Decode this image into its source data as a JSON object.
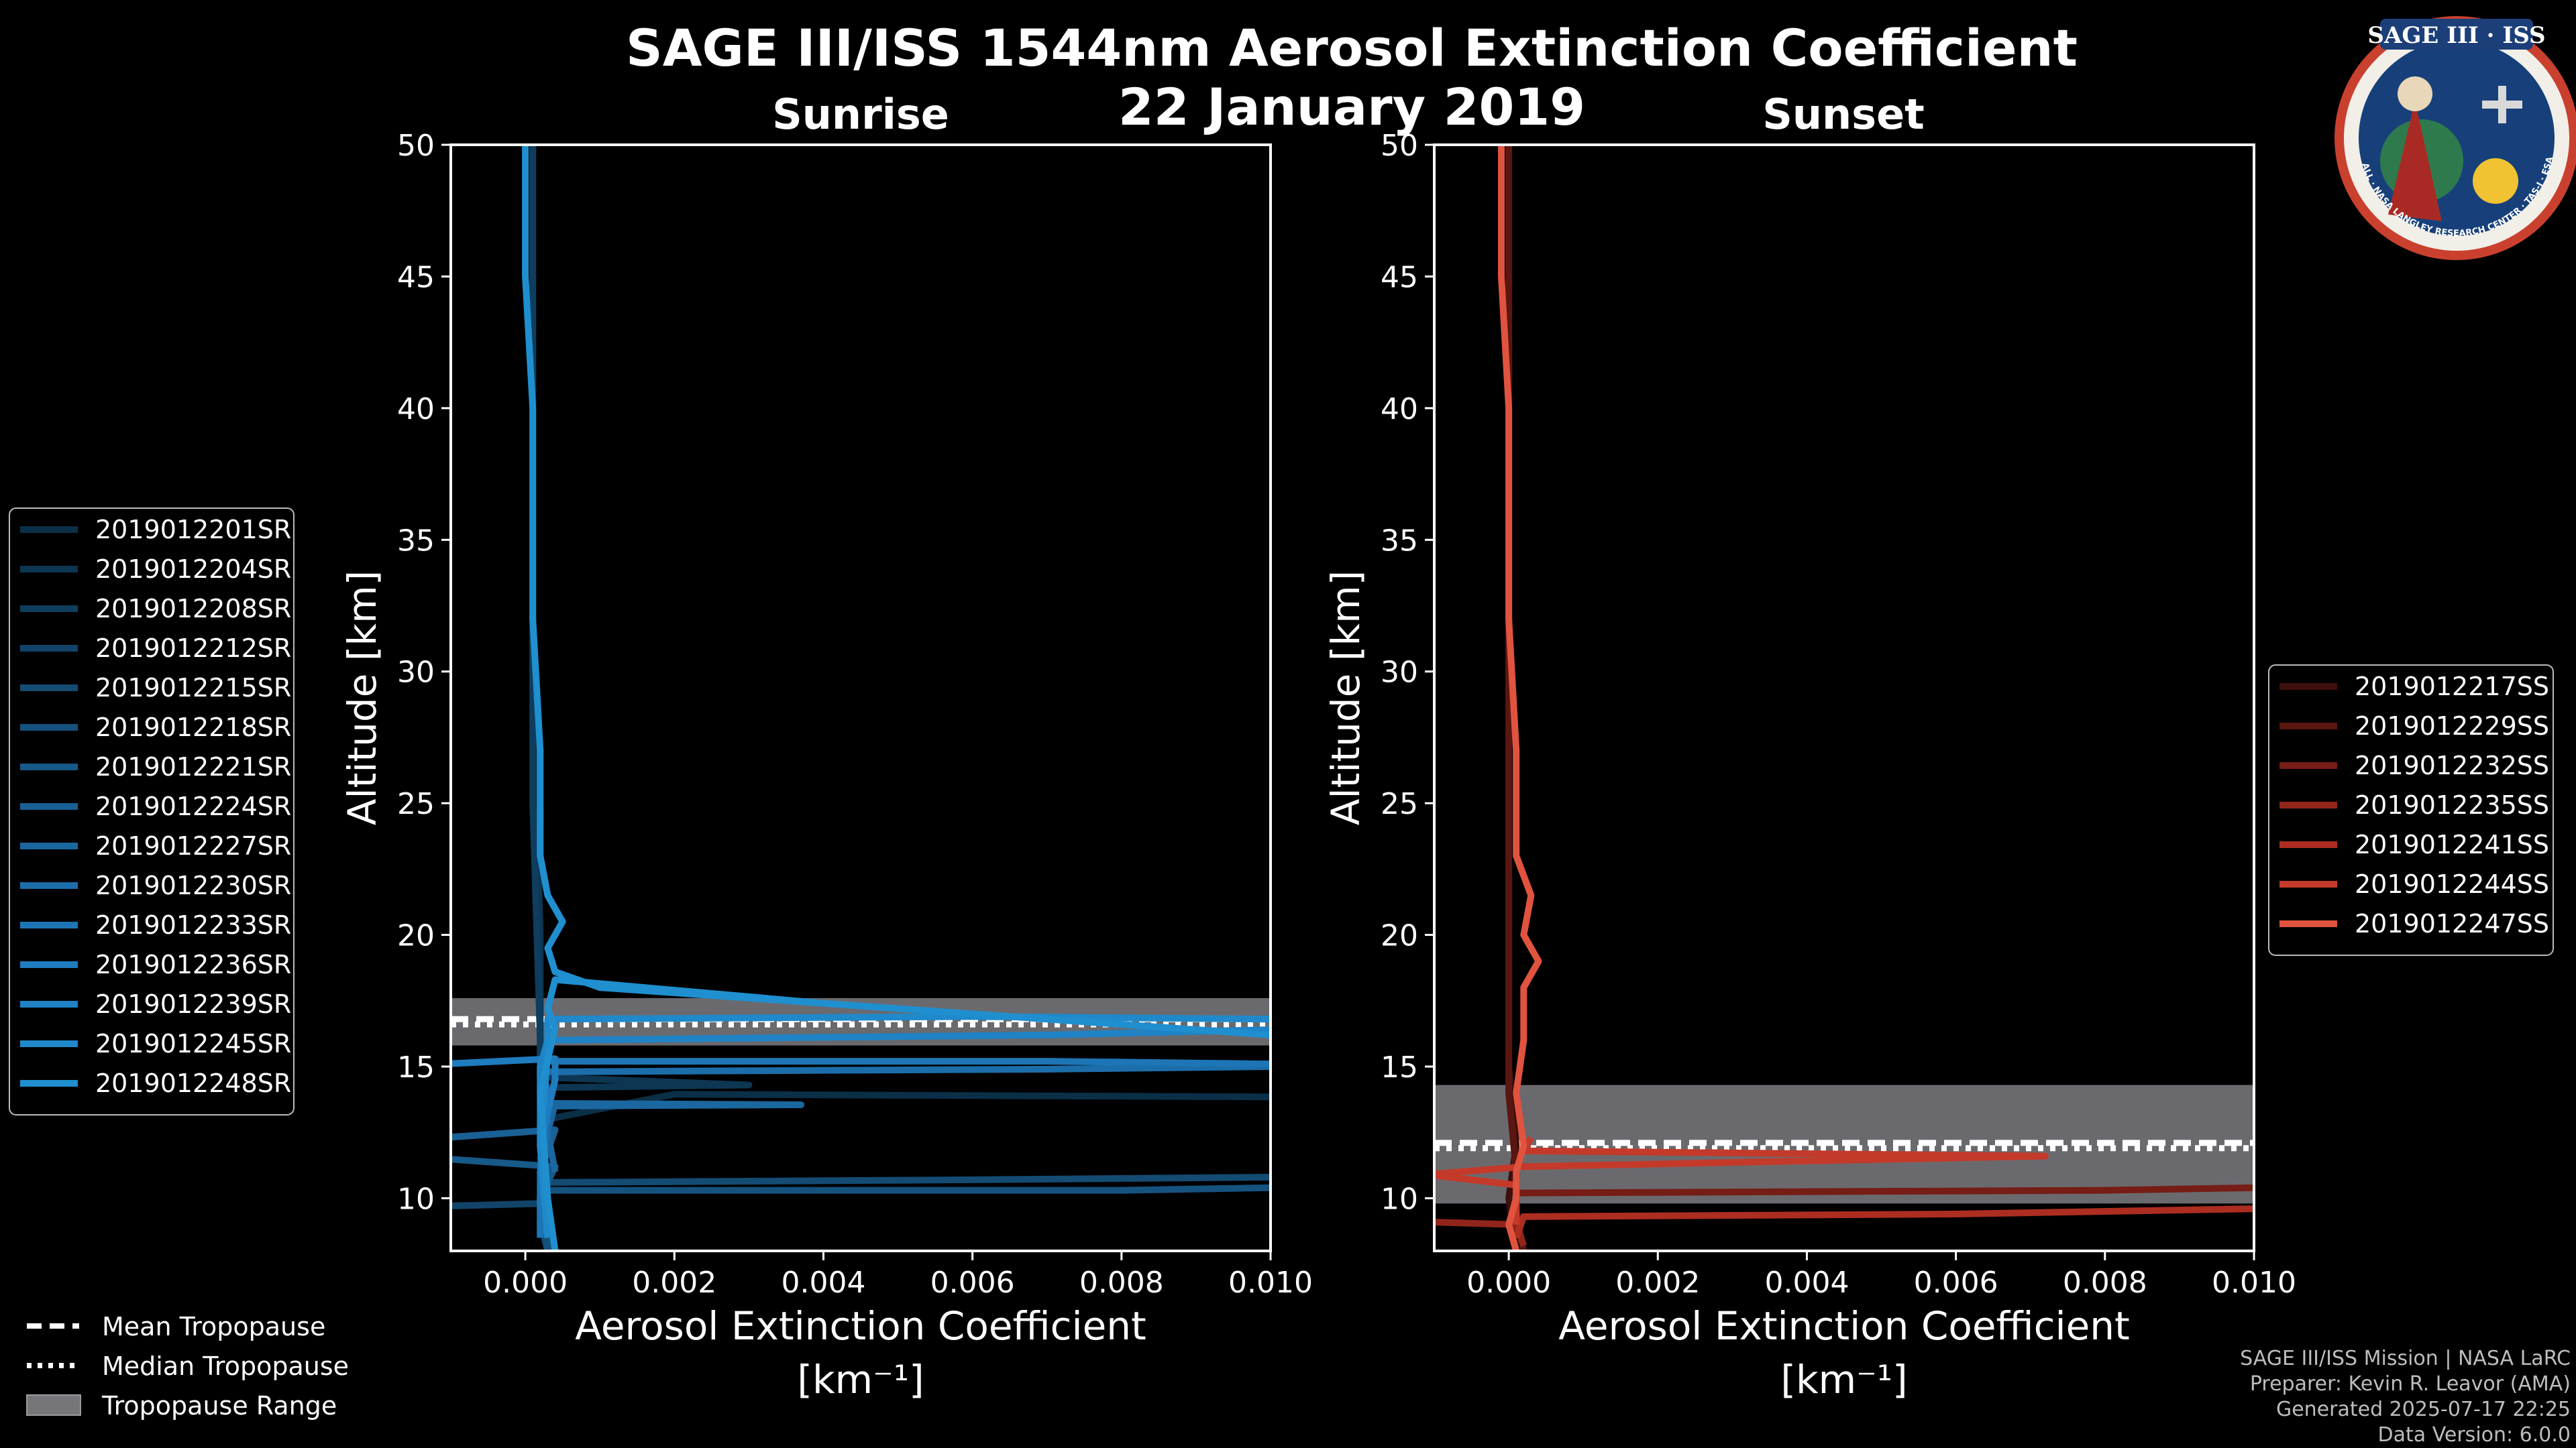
{
  "title": "SAGE III/ISS 1544nm Aerosol Extinction Coefficient",
  "date": "22 January 2019",
  "logo": {
    "text": "SAGE III · ISS",
    "ring_text": "BALL · NASA LANGLEY RESEARCH CENTER · TAS-I · ESA"
  },
  "footer": [
    "SAGE III/ISS Mission | NASA LaRC",
    "Preparer: Kevin R. Leavor (AMA)",
    "Generated 2025-07-17 22:25",
    "Data Version: 6.0.0"
  ],
  "tropopause_legend": [
    {
      "label": "Mean Tropopause",
      "style": "dashed"
    },
    {
      "label": "Median Tropopause",
      "style": "dotted"
    },
    {
      "label": "Tropopause Range",
      "style": "band"
    }
  ],
  "chart_data": [
    {
      "type": "line",
      "title": "Sunrise",
      "xlabel": "Aerosol Extinction Coefficient",
      "xunit": "[km⁻¹]",
      "ylabel": "Altitude [km]",
      "xlim": [
        -0.001,
        0.01
      ],
      "ylim": [
        8,
        50
      ],
      "xticks": [
        "0.000",
        "0.002",
        "0.004",
        "0.006",
        "0.008",
        "0.010"
      ],
      "xtick_values": [
        0,
        0.002,
        0.004,
        0.006,
        0.008,
        0.01
      ],
      "yticks": [
        10,
        15,
        20,
        25,
        30,
        35,
        40,
        45,
        50
      ],
      "tropopause": {
        "mean": 16.8,
        "median": 16.6,
        "range": [
          15.8,
          17.6
        ]
      },
      "color": "#1f8cc8",
      "series": [
        {
          "name": "2019012201SR",
          "color": "#0b2f47",
          "points": [
            [
              0.0003,
              8
            ],
            [
              0.0002,
              9
            ],
            [
              0.0002,
              10
            ],
            [
              0.0003,
              11
            ],
            [
              0.0002,
              12
            ],
            [
              0.0003,
              13
            ],
            [
              0.002,
              13.95
            ],
            [
              0.01,
              13.85
            ]
          ]
        },
        {
          "name": "2019012204SR",
          "color": "#0d3652",
          "points": [
            [
              0.0004,
              8
            ],
            [
              0.0003,
              9
            ],
            [
              0.0002,
              10
            ],
            [
              0.0003,
              11
            ],
            [
              0.0002,
              12
            ],
            [
              0.0002,
              13
            ],
            [
              0.0003,
              14.2
            ],
            [
              0.003,
              14.3
            ],
            [
              0.0002,
              14.6
            ],
            [
              0.0002,
              16
            ],
            [
              0.0002,
              20
            ],
            [
              0.0001,
              30
            ],
            [
              0.0001,
              50
            ]
          ]
        },
        {
          "name": "2019012208SR",
          "color": "#0f3d5d",
          "points": [
            [
              0.0003,
              8
            ],
            [
              0.0002,
              9.5
            ],
            [
              0.0003,
              10.5
            ],
            [
              0.0002,
              11.5
            ],
            [
              0.0003,
              12.5
            ],
            [
              0.0002,
              14
            ],
            [
              0.0002,
              16
            ],
            [
              0.0001,
              25
            ],
            [
              0.0001,
              50
            ]
          ]
        },
        {
          "name": "2019012212SR",
          "color": "#114468",
          "points": [
            [
              0.0004,
              8
            ],
            [
              0.0003,
              9
            ],
            [
              0.0002,
              9.8
            ],
            [
              -0.0011,
              9.7
            ]
          ]
        },
        {
          "name": "2019012215SR",
          "color": "#134b73",
          "points": [
            [
              0.0003,
              8
            ],
            [
              0.0002,
              9.5
            ],
            [
              0.0003,
              10.6
            ],
            [
              0.006,
              10.7
            ],
            [
              0.01,
              10.8
            ]
          ]
        },
        {
          "name": "2019012218SR",
          "color": "#15527e",
          "points": [
            [
              0.0003,
              8
            ],
            [
              0.0003,
              9.5
            ],
            [
              0.0002,
              10.3
            ],
            [
              0.008,
              10.3
            ],
            [
              0.01,
              10.4
            ]
          ]
        },
        {
          "name": "2019012221SR",
          "color": "#175989",
          "points": [
            [
              0.0002,
              8.5
            ],
            [
              0.0002,
              10
            ],
            [
              0.0004,
              11.2
            ],
            [
              -0.0011,
              11.5
            ]
          ]
        },
        {
          "name": "2019012224SR",
          "color": "#196094",
          "points": [
            [
              0.0003,
              9
            ],
            [
              0.0002,
              11
            ],
            [
              0.0004,
              12.6
            ],
            [
              -0.0011,
              12.3
            ]
          ]
        },
        {
          "name": "2019012227SR",
          "color": "#1b679f",
          "points": [
            [
              0.0004,
              11
            ],
            [
              0.0003,
              12.5
            ],
            [
              0.0004,
              13.6
            ],
            [
              0.0037,
              13.55
            ],
            [
              0.0004,
              13.5
            ]
          ]
        },
        {
          "name": "2019012230SR",
          "color": "#1c6eaa",
          "points": [
            [
              0.0003,
              8.5
            ],
            [
              0.0002,
              10
            ],
            [
              0.0003,
              13
            ],
            [
              0.0002,
              14.8
            ],
            [
              0.007,
              14.9
            ],
            [
              0.01,
              15
            ]
          ]
        },
        {
          "name": "2019012233SR",
          "color": "#1d75b5",
          "points": [
            [
              0.0002,
              8.5
            ],
            [
              0.0002,
              11
            ],
            [
              0.0003,
              14
            ],
            [
              0.0002,
              15.2
            ],
            [
              0.007,
              15.2
            ],
            [
              0.01,
              15.1
            ]
          ]
        },
        {
          "name": "2019012236SR",
          "color": "#1e7cbf",
          "points": [
            [
              0.0003,
              9
            ],
            [
              0.0002,
              12
            ],
            [
              0.0004,
              14.5
            ],
            [
              0.0004,
              15.3
            ],
            [
              -0.0011,
              15.1
            ]
          ]
        },
        {
          "name": "2019012239SR",
          "color": "#1f83c6",
          "points": [
            [
              0.0003,
              9
            ],
            [
              0.0002,
              12
            ],
            [
              0.0002,
              15
            ],
            [
              0.0003,
              16
            ],
            [
              0.007,
              16.2
            ],
            [
              0.01,
              16.4
            ]
          ]
        },
        {
          "name": "2019012245SR",
          "color": "#1f89cb",
          "points": [
            [
              0.0003,
              8.5
            ],
            [
              0.0002,
              12
            ],
            [
              0.0003,
              15.5
            ],
            [
              0.0003,
              16.8
            ],
            [
              0.006,
              16.9
            ],
            [
              0.01,
              16.8
            ]
          ]
        },
        {
          "name": "2019012248SR",
          "color": "#1f8fcf",
          "points": [
            [
              0.0004,
              8
            ],
            [
              0.0003,
              10
            ],
            [
              0.0002,
              14
            ],
            [
              0.0004,
              16.5
            ],
            [
              0.0003,
              17.2
            ],
            [
              0.0004,
              18.3
            ],
            [
              0.004,
              17.4
            ],
            [
              0.01,
              16.2
            ],
            [
              0.001,
              18
            ],
            [
              0.0004,
              18.6
            ],
            [
              0.0003,
              19.5
            ],
            [
              0.0005,
              20.5
            ],
            [
              0.0003,
              21.5
            ],
            [
              0.0002,
              23
            ],
            [
              0.0002,
              27
            ],
            [
              0.0001,
              32
            ],
            [
              0.0001,
              40
            ],
            [
              0.0,
              45
            ],
            [
              0.0,
              50
            ]
          ]
        }
      ]
    },
    {
      "type": "line",
      "title": "Sunset",
      "xlabel": "Aerosol Extinction Coefficient",
      "xunit": "[km⁻¹]",
      "ylabel": "Altitude [km]",
      "xlim": [
        -0.001,
        0.01
      ],
      "ylim": [
        8,
        50
      ],
      "xticks": [
        "0.000",
        "0.002",
        "0.004",
        "0.006",
        "0.008",
        "0.010"
      ],
      "xtick_values": [
        0,
        0.002,
        0.004,
        0.006,
        0.008,
        0.01
      ],
      "yticks": [
        10,
        15,
        20,
        25,
        30,
        35,
        40,
        45,
        50
      ],
      "tropopause": {
        "mean": 12.1,
        "median": 11.9,
        "range": [
          9.8,
          14.3
        ]
      },
      "color": "#e0533f",
      "series": [
        {
          "name": "2019012217SS",
          "color": "#3e0f0b",
          "points": [
            [
              0.0001,
              8
            ],
            [
              0.0,
              10
            ],
            [
              0.0001,
              12
            ],
            [
              0.0,
              15
            ],
            [
              0.0,
              20
            ],
            [
              0.0,
              30
            ],
            [
              0.0,
              50
            ]
          ]
        },
        {
          "name": "2019012229SS",
          "color": "#5a1610",
          "points": [
            [
              0.0002,
              8
            ],
            [
              0.0001,
              9.5
            ],
            [
              0.0001,
              11
            ],
            [
              0.0,
              14
            ],
            [
              0.0,
              20
            ],
            [
              0.0,
              50
            ]
          ]
        },
        {
          "name": "2019012232SS",
          "color": "#761d15",
          "points": [
            [
              0.0001,
              8.5
            ],
            [
              0.0001,
              10.2
            ],
            [
              0.008,
              10.3
            ],
            [
              0.01,
              10.4
            ]
          ]
        },
        {
          "name": "2019012235SS",
          "color": "#92251a",
          "points": [
            [
              0.0002,
              8.2
            ],
            [
              0.0001,
              9
            ],
            [
              -0.0011,
              9.1
            ]
          ]
        },
        {
          "name": "2019012241SS",
          "color": "#ad2d20",
          "points": [
            [
              0.0001,
              8.5
            ],
            [
              0.0002,
              9.3
            ],
            [
              0.006,
              9.4
            ],
            [
              0.01,
              9.6
            ]
          ]
        },
        {
          "name": "2019012244SS",
          "color": "#c43a2a",
          "points": [
            [
              0.0001,
              9
            ],
            [
              0.0001,
              10.5
            ],
            [
              -0.0011,
              10.9
            ],
            [
              0.0002,
              11.2
            ],
            [
              0.0072,
              11.6
            ],
            [
              0.0002,
              11.8
            ],
            [
              0.0003,
              12.3
            ]
          ]
        },
        {
          "name": "2019012247SS",
          "color": "#e0533f",
          "points": [
            [
              0.0001,
              8
            ],
            [
              0.0,
              9
            ],
            [
              0.0001,
              10
            ],
            [
              0.0001,
              11
            ],
            [
              0.0002,
              12
            ],
            [
              0.0001,
              14
            ],
            [
              0.0002,
              16
            ],
            [
              0.0002,
              18
            ],
            [
              0.0004,
              19
            ],
            [
              0.0002,
              20
            ],
            [
              0.0003,
              21.5
            ],
            [
              0.0001,
              23
            ],
            [
              0.0001,
              27
            ],
            [
              0.0,
              32
            ],
            [
              0.0,
              40
            ],
            [
              -0.0001,
              45
            ],
            [
              -0.0001,
              50
            ]
          ]
        }
      ]
    }
  ]
}
